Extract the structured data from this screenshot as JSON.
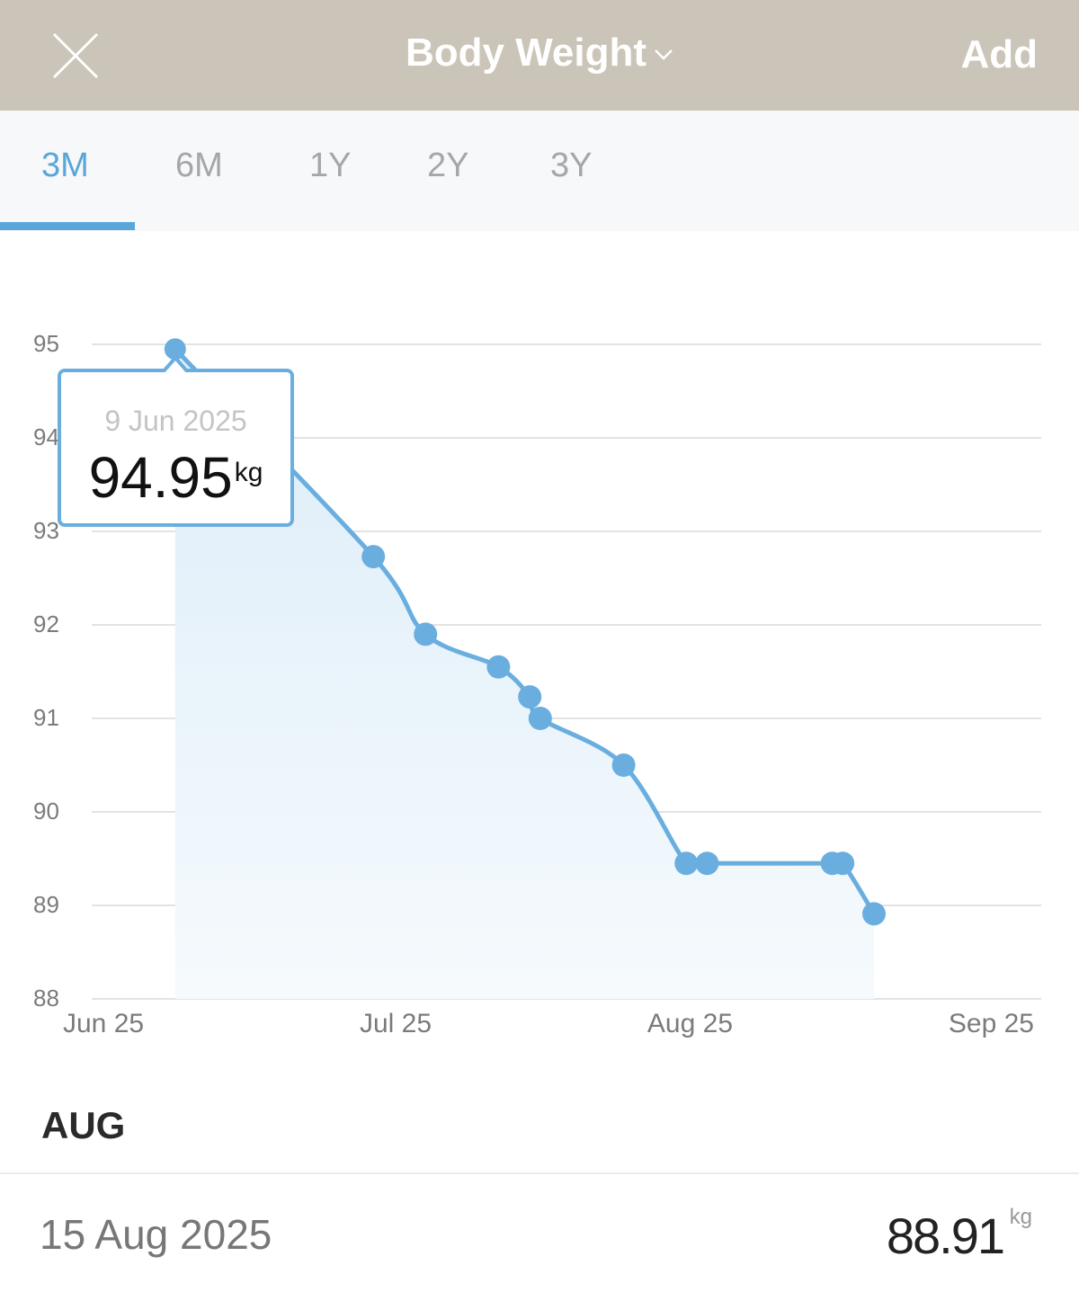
{
  "header": {
    "title": "Body Weight",
    "add_label": "Add"
  },
  "tabs": [
    {
      "label": "3M",
      "active": true
    },
    {
      "label": "6M",
      "active": false
    },
    {
      "label": "1Y",
      "active": false
    },
    {
      "label": "2Y",
      "active": false
    },
    {
      "label": "3Y",
      "active": false
    }
  ],
  "colors": {
    "accent": "#5aa6d8",
    "line": "#6aaee0",
    "header_bg": "#cbc4b8"
  },
  "tooltip": {
    "date": "9 Jun 2025",
    "value": "94.95",
    "unit": "kg"
  },
  "chart_data": {
    "type": "area",
    "title": "Body Weight",
    "ylabel": "kg",
    "ylim": [
      88,
      95
    ],
    "yticks": [
      "95",
      "94",
      "93",
      "92",
      "91",
      "90",
      "89",
      "88"
    ],
    "xticks": [
      "Jun 25",
      "Jul 25",
      "Aug 25",
      "Sep 25"
    ],
    "xrange": [
      "2025-06-01",
      "2025-09-01"
    ],
    "grid": true,
    "points": [
      {
        "x": "2025-06-09",
        "y": 94.95
      },
      {
        "x": "2025-06-28",
        "y": 92.73
      },
      {
        "x": "2025-07-03",
        "y": 91.9
      },
      {
        "x": "2025-07-10",
        "y": 91.55
      },
      {
        "x": "2025-07-13",
        "y": 91.23
      },
      {
        "x": "2025-07-14",
        "y": 91.0
      },
      {
        "x": "2025-07-22",
        "y": 90.5
      },
      {
        "x": "2025-07-28",
        "y": 89.45
      },
      {
        "x": "2025-07-30",
        "y": 89.45
      },
      {
        "x": "2025-08-11",
        "y": 89.45
      },
      {
        "x": "2025-08-12",
        "y": 89.45
      },
      {
        "x": "2025-08-15",
        "y": 88.91
      }
    ]
  },
  "list": {
    "month": "AUG",
    "entries": [
      {
        "date": "15 Aug 2025",
        "value": "88.91",
        "unit": "kg"
      }
    ]
  }
}
